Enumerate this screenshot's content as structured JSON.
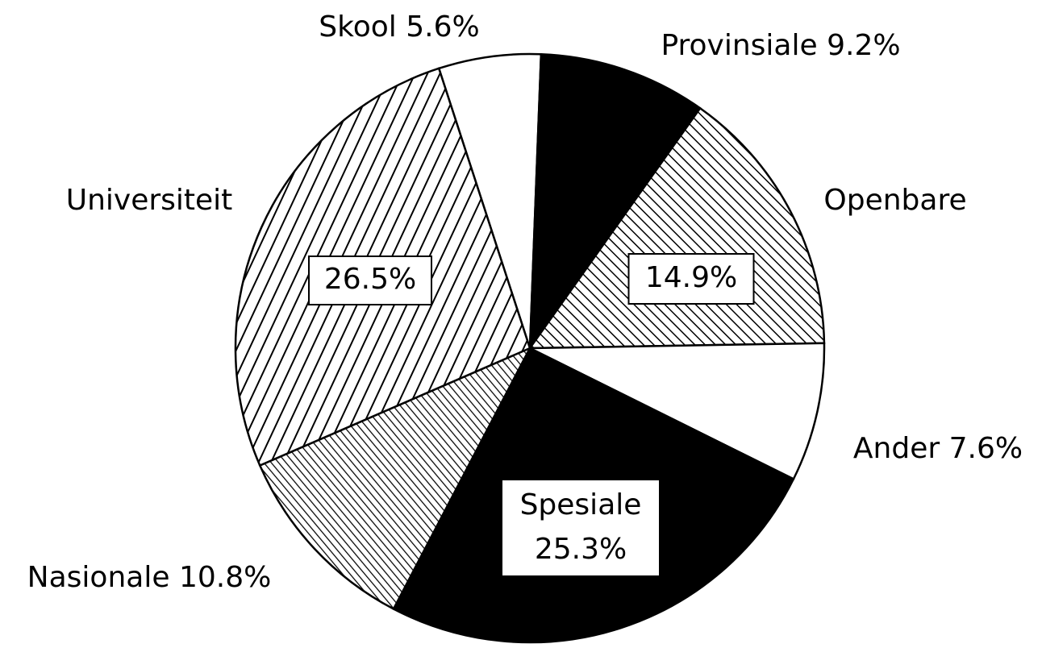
{
  "chart_data": {
    "type": "pie",
    "categories": [
      "Skool",
      "Provinsiale",
      "Openbare",
      "Ander",
      "Spesiale",
      "Nasionale",
      "Universiteit"
    ],
    "values": [
      5.6,
      9.2,
      14.9,
      7.6,
      25.3,
      10.8,
      26.5
    ],
    "value_labels": [
      "5.6%",
      "9.2%",
      "14.9%",
      "7.6%",
      "25.3%",
      "10.8%",
      "26.5%"
    ],
    "colors": [
      "#ffffff",
      "#000000",
      "#ffffff",
      "#ffffff",
      "#000000",
      "#ffffff",
      "#ffffff"
    ],
    "patterns": [
      null,
      null,
      "backslash",
      null,
      null,
      "backslash-dense",
      "slash"
    ]
  }
}
